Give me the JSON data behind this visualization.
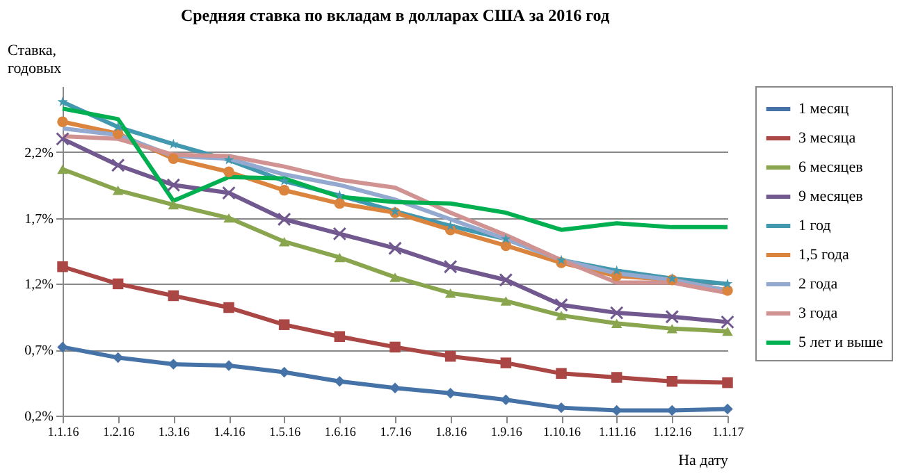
{
  "chart_data": {
    "type": "line",
    "title": "Средняя ставка по вкладам в долларах  США за 2016 год",
    "ylabel": "Ставка, годовых",
    "xlabel": "На дату",
    "categories": [
      "1.1.16",
      "1.2.16",
      "1.3.16",
      "1.4.16",
      "1.5.16",
      "1.6.16",
      "1.7.16",
      "1.8.16",
      "1.9.16",
      "1.10.16",
      "1.11.16",
      "1.12.16",
      "1.1.17"
    ],
    "ylim": [
      0.2,
      2.7
    ],
    "yticks": [
      {
        "value": 0.2,
        "label": "0,2%"
      },
      {
        "value": 0.7,
        "label": "0,7%"
      },
      {
        "value": 1.2,
        "label": "1,2%"
      },
      {
        "value": 1.7,
        "label": "1,7%"
      },
      {
        "value": 2.2,
        "label": "2,2%"
      }
    ],
    "grid": "y",
    "legend": "right",
    "line_style": "solid",
    "series": [
      {
        "name": "1 месяц",
        "color": "#4572a7",
        "marker": "diamond",
        "values": [
          0.72,
          0.64,
          0.59,
          0.58,
          0.53,
          0.46,
          0.41,
          0.37,
          0.32,
          0.26,
          0.24,
          0.24,
          0.25
        ]
      },
      {
        "name": "3 месяца",
        "color": "#aa4643",
        "marker": "square",
        "values": [
          1.33,
          1.2,
          1.11,
          1.02,
          0.89,
          0.8,
          0.72,
          0.65,
          0.6,
          0.52,
          0.49,
          0.46,
          0.45
        ]
      },
      {
        "name": "6 месяцев",
        "color": "#89a54e",
        "marker": "triangle",
        "values": [
          2.07,
          1.91,
          1.8,
          1.7,
          1.52,
          1.4,
          1.25,
          1.13,
          1.07,
          0.96,
          0.9,
          0.86,
          0.84
        ]
      },
      {
        "name": "9 месяцев",
        "color": "#71588f",
        "marker": "cross",
        "values": [
          2.3,
          2.1,
          1.95,
          1.89,
          1.69,
          1.58,
          1.47,
          1.33,
          1.23,
          1.04,
          0.98,
          0.95,
          0.91
        ]
      },
      {
        "name": "1 год",
        "color": "#4198af",
        "marker": "star",
        "values": [
          2.58,
          2.39,
          2.26,
          2.14,
          1.98,
          1.87,
          1.75,
          1.64,
          1.54,
          1.38,
          1.3,
          1.24,
          1.2
        ]
      },
      {
        "name": "1,5 года",
        "color": "#db843d",
        "marker": "circle",
        "values": [
          2.43,
          2.34,
          2.15,
          2.05,
          1.91,
          1.81,
          1.74,
          1.61,
          1.49,
          1.36,
          1.26,
          1.23,
          1.15
        ]
      },
      {
        "name": "2 года",
        "color": "#93a9cf",
        "marker": "none",
        "values": [
          2.38,
          2.33,
          2.17,
          2.15,
          2.03,
          1.95,
          1.84,
          1.69,
          1.54,
          1.38,
          1.28,
          1.23,
          1.15
        ]
      },
      {
        "name": "3 года",
        "color": "#d19392",
        "marker": "none",
        "values": [
          2.32,
          2.3,
          2.18,
          2.17,
          2.09,
          1.99,
          1.93,
          1.74,
          1.57,
          1.38,
          1.21,
          1.21,
          1.13
        ]
      },
      {
        "name": "5 лет и выше",
        "color": "#00b050",
        "marker": "none",
        "values": [
          2.53,
          2.45,
          1.83,
          2.01,
          2.0,
          1.86,
          1.82,
          1.81,
          1.74,
          1.61,
          1.66,
          1.63,
          1.63
        ]
      }
    ]
  }
}
